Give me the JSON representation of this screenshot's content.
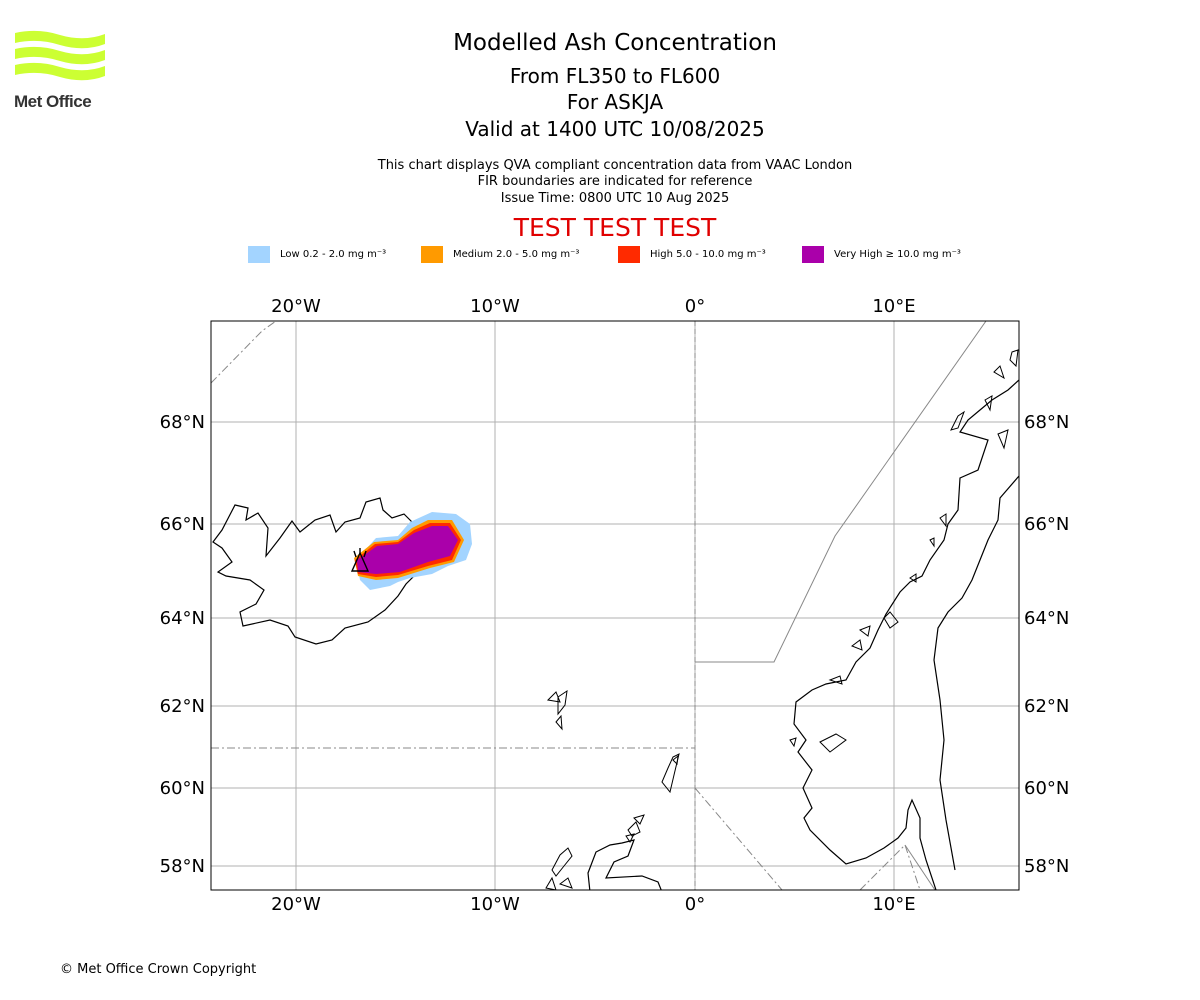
{
  "logo": {
    "text": "Met Office",
    "colors": {
      "waves": "#ccff33",
      "text": "#333333"
    }
  },
  "title": "Modelled Ash Concentration",
  "subtitle": [
    "From FL350 to FL600",
    "For ASKJA",
    "Valid at 1400 UTC 10/08/2025"
  ],
  "description": [
    "This chart displays QVA compliant concentration data from VAAC London",
    "FIR boundaries are indicated for reference",
    "Issue Time: 0800 UTC 10 Aug 2025"
  ],
  "test_banner": {
    "text": "TEST TEST TEST",
    "color": "#e00000"
  },
  "legend": [
    {
      "label": "Low 0.2 - 2.0 mg m⁻³",
      "color": "#a3d4ff"
    },
    {
      "label": "Medium 2.0 - 5.0 mg m⁻³",
      "color": "#ff9a00"
    },
    {
      "label": "High 5.0 - 10.0 mg m⁻³",
      "color": "#ff2a00"
    },
    {
      "label": "Very High ≥ 10.0 mg m⁻³",
      "color": "#aa00aa"
    }
  ],
  "map": {
    "lon_ticks": [
      "20°W",
      "10°W",
      "0°",
      "10°E"
    ],
    "lat_ticks": [
      "68°N",
      "66°N",
      "64°N",
      "62°N",
      "60°N",
      "58°N"
    ],
    "lon_range": [
      -24.2,
      16.2
    ],
    "lat_range": [
      57.4,
      70.0
    ],
    "volcano": "ASKJA",
    "volcano_lon": -16.8,
    "volcano_lat": 65.05
  },
  "copyright": "© Met Office Crown Copyright"
}
